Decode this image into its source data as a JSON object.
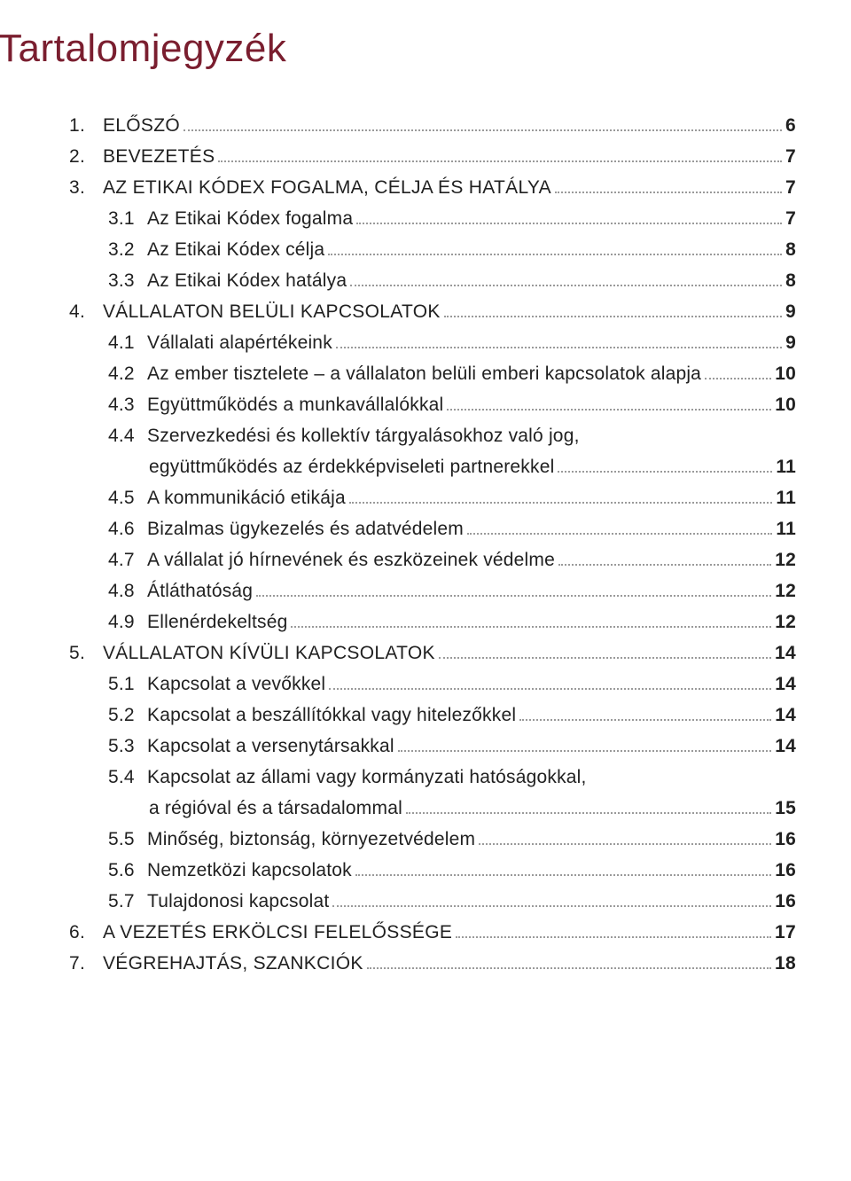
{
  "title": "Tartalomjegyzék",
  "title_color": "#7a1e2f",
  "title_fontsize": 44,
  "body_fontsize": 21,
  "leader_color": "#9a9a9a",
  "background_color": "#ffffff",
  "entries": {
    "e1": {
      "num": "1.",
      "label": "ELŐSZÓ",
      "page": "6"
    },
    "e2": {
      "num": "2.",
      "label": "BEVEZETÉS",
      "page": "7"
    },
    "e3": {
      "num": "3.",
      "label": "AZ ETIKAI KÓDEX FOGALMA, CÉLJA ÉS HATÁLYA",
      "page": "7"
    },
    "e3_1": {
      "num": "3.1",
      "label": "Az Etikai Kódex fogalma",
      "page": "7"
    },
    "e3_2": {
      "num": "3.2",
      "label": "Az Etikai Kódex célja",
      "page": "8"
    },
    "e3_3": {
      "num": "3.3",
      "label": "Az Etikai Kódex hatálya",
      "page": "8"
    },
    "e4": {
      "num": "4.",
      "label": "VÁLLALATON BELÜLI KAPCSOLATOK",
      "page": "9"
    },
    "e4_1": {
      "num": "4.1",
      "label": "Vállalati alapértékeink",
      "page": "9"
    },
    "e4_2": {
      "num": "4.2",
      "label": "Az ember tisztelete – a vállalaton belüli emberi kapcsolatok alapja",
      "page": "10"
    },
    "e4_3": {
      "num": "4.3",
      "label": "Együttműködés a munkavállalókkal",
      "page": "10"
    },
    "e4_4a": {
      "num": "4.4",
      "label": "Szervezkedési és kollektív tárgyalásokhoz való jog,"
    },
    "e4_4b": {
      "label": "együttműködés az érdekképviseleti partnerekkel",
      "page": "11"
    },
    "e4_5": {
      "num": "4.5",
      "label": "A kommunikáció etikája",
      "page": "11"
    },
    "e4_6": {
      "num": "4.6",
      "label": "Bizalmas ügykezelés és adatvédelem",
      "page": "11"
    },
    "e4_7": {
      "num": "4.7",
      "label": "A vállalat jó hírnevének és eszközeinek védelme",
      "page": "12"
    },
    "e4_8": {
      "num": "4.8",
      "label": "Átláthatóság",
      "page": "12"
    },
    "e4_9": {
      "num": "4.9",
      "label": "Ellenérdekeltség",
      "page": "12"
    },
    "e5": {
      "num": "5.",
      "label": "VÁLLALATON KÍVÜLI KAPCSOLATOK",
      "page": "14"
    },
    "e5_1": {
      "num": "5.1",
      "label": "Kapcsolat a vevőkkel",
      "page": "14"
    },
    "e5_2": {
      "num": "5.2",
      "label": "Kapcsolat a beszállítókkal vagy hitelezőkkel",
      "page": "14"
    },
    "e5_3": {
      "num": "5.3",
      "label": "Kapcsolat a versenytársakkal",
      "page": "14"
    },
    "e5_4a": {
      "num": "5.4",
      "label": "Kapcsolat az állami vagy kormányzati hatóságokkal,"
    },
    "e5_4b": {
      "label": "a régióval és a társadalommal",
      "page": "15"
    },
    "e5_5": {
      "num": "5.5",
      "label": "Minőség, biztonság, környezetvédelem",
      "page": "16"
    },
    "e5_6": {
      "num": "5.6",
      "label": "Nemzetközi kapcsolatok",
      "page": "16"
    },
    "e5_7": {
      "num": "5.7",
      "label": "Tulajdonosi kapcsolat",
      "page": "16"
    },
    "e6": {
      "num": "6.",
      "label": "A VEZETÉS ERKÖLCSI FELELŐSSÉGE",
      "page": "17"
    },
    "e7": {
      "num": "7.",
      "label": "VÉGREHAJTÁS, SZANKCIÓK",
      "page": "18"
    }
  }
}
